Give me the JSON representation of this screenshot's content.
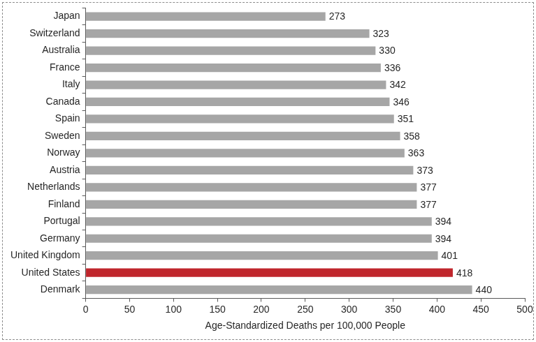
{
  "chart_data": {
    "type": "bar",
    "orientation": "horizontal",
    "categories": [
      "Japan",
      "Switzerland",
      "Australia",
      "France",
      "Italy",
      "Canada",
      "Spain",
      "Sweden",
      "Norway",
      "Austria",
      "Netherlands",
      "Finland",
      "Portugal",
      "Germany",
      "United Kingdom",
      "United States",
      "Denmark"
    ],
    "values": [
      273,
      323,
      330,
      336,
      342,
      346,
      351,
      358,
      363,
      373,
      377,
      377,
      394,
      394,
      401,
      418,
      440
    ],
    "colors": [
      "#a6a6a6",
      "#a6a6a6",
      "#a6a6a6",
      "#a6a6a6",
      "#a6a6a6",
      "#a6a6a6",
      "#a6a6a6",
      "#a6a6a6",
      "#a6a6a6",
      "#a6a6a6",
      "#a6a6a6",
      "#a6a6a6",
      "#a6a6a6",
      "#a6a6a6",
      "#a6a6a6",
      "#c0262c",
      "#a6a6a6"
    ],
    "x_label": "Age-Standardized Deaths per 100,000 People",
    "xlim": [
      0,
      500
    ],
    "xticks": [
      0,
      50,
      100,
      150,
      200,
      250,
      300,
      350,
      400,
      450,
      500
    ],
    "grid": false,
    "data_labels": true
  }
}
